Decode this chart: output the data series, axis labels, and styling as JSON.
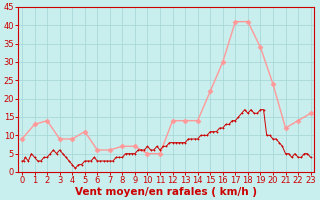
{
  "xlabel": "Vent moyen/en rafales ( km/h )",
  "xlabel_color": "#cc0000",
  "background_color": "#c8eeed",
  "grid_color": "#aad8d8",
  "ylim": [
    0,
    45
  ],
  "yticks": [
    0,
    5,
    10,
    15,
    20,
    25,
    30,
    35,
    40,
    45
  ],
  "xticks": [
    0,
    1,
    2,
    3,
    4,
    5,
    6,
    7,
    8,
    9,
    10,
    11,
    12,
    13,
    14,
    15,
    16,
    17,
    18,
    19,
    20,
    21,
    22,
    23
  ],
  "mean_color": "#ff9999",
  "gust_color": "#cc0000",
  "mean_values": [
    9,
    13,
    14,
    9,
    9,
    11,
    6,
    6,
    7,
    7,
    5,
    5,
    14,
    14,
    14,
    22,
    30,
    41,
    41,
    34,
    24,
    12,
    14,
    16
  ],
  "gust_x": [
    0.0,
    0.125,
    0.25,
    0.5,
    0.75,
    1.0,
    1.25,
    1.5,
    1.75,
    2.0,
    2.25,
    2.5,
    2.75,
    3.0,
    3.25,
    3.5,
    3.75,
    4.0,
    4.25,
    4.5,
    4.75,
    5.0,
    5.25,
    5.5,
    5.75,
    6.0,
    6.25,
    6.5,
    6.75,
    7.0,
    7.25,
    7.5,
    7.75,
    8.0,
    8.25,
    8.5,
    8.75,
    9.0,
    9.25,
    9.5,
    9.75,
    10.0,
    10.25,
    10.5,
    10.75,
    11.0,
    11.25,
    11.5,
    11.75,
    12.0,
    12.25,
    12.5,
    12.75,
    13.0,
    13.25,
    13.5,
    13.75,
    14.0,
    14.25,
    14.5,
    14.75,
    15.0,
    15.25,
    15.5,
    15.75,
    16.0,
    16.25,
    16.5,
    16.75,
    17.0,
    17.25,
    17.5,
    17.75,
    18.0,
    18.25,
    18.5,
    18.75,
    19.0,
    19.25,
    19.5,
    19.75,
    20.0,
    20.25,
    20.5,
    20.75,
    21.0,
    21.25,
    21.5,
    21.75,
    22.0,
    22.25,
    22.5,
    22.75,
    23.0
  ],
  "gust_values": [
    3,
    3,
    4,
    3,
    5,
    4,
    3,
    3,
    4,
    4,
    5,
    6,
    5,
    6,
    5,
    4,
    3,
    2,
    1,
    2,
    2,
    3,
    3,
    3,
    4,
    3,
    3,
    3,
    3,
    3,
    3,
    4,
    4,
    4,
    5,
    5,
    5,
    5,
    6,
    6,
    6,
    7,
    6,
    6,
    7,
    6,
    7,
    7,
    8,
    8,
    8,
    8,
    8,
    8,
    9,
    9,
    9,
    9,
    10,
    10,
    10,
    11,
    11,
    11,
    12,
    12,
    13,
    13,
    14,
    14,
    15,
    16,
    17,
    16,
    17,
    16,
    16,
    17,
    17,
    10,
    10,
    9,
    9,
    8,
    7,
    5,
    5,
    4,
    5,
    4,
    4,
    5,
    5,
    4
  ],
  "tick_fontsize": 6,
  "xlabel_fontsize": 7.5,
  "marker_size": 2.5
}
